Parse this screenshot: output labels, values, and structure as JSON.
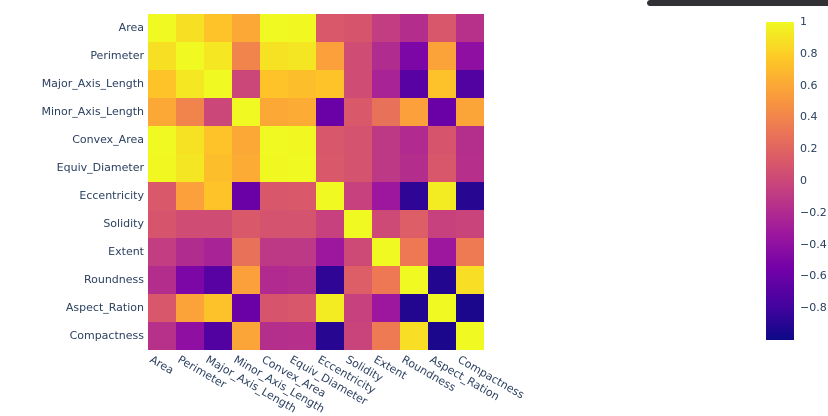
{
  "page": {
    "background": "#ffffff"
  },
  "top_bar": {
    "color": "#323236"
  },
  "chart_data": {
    "type": "heatmap",
    "title": "",
    "xlabel": "",
    "ylabel": "",
    "grid": false,
    "legend_position": "right-colorbar",
    "tick_font_color": "#2a3f5f",
    "categories": [
      "Area",
      "Perimeter",
      "Major_Axis_Length",
      "Minor_Axis_Length",
      "Convex_Area",
      "Equiv_Diameter",
      "Eccentricity",
      "Solidity",
      "Extent",
      "Roundness",
      "Aspect_Ration",
      "Compactness"
    ],
    "matrix": [
      [
        1.0,
        0.88,
        0.74,
        0.6,
        1.0,
        0.99,
        0.12,
        0.1,
        -0.07,
        -0.18,
        0.11,
        -0.15
      ],
      [
        0.88,
        1.0,
        0.92,
        0.4,
        0.89,
        0.91,
        0.56,
        0.04,
        -0.19,
        -0.5,
        0.57,
        -0.41
      ],
      [
        0.74,
        0.92,
        1.0,
        0.0,
        0.74,
        0.72,
        0.74,
        0.04,
        -0.25,
        -0.68,
        0.73,
        -0.72
      ],
      [
        0.6,
        0.4,
        0.0,
        1.0,
        0.6,
        0.62,
        -0.6,
        0.12,
        0.28,
        0.56,
        -0.6,
        0.58
      ],
      [
        1.0,
        0.89,
        0.74,
        0.6,
        1.0,
        0.99,
        0.11,
        0.08,
        -0.1,
        -0.2,
        0.1,
        -0.17
      ],
      [
        0.99,
        0.91,
        0.72,
        0.62,
        0.99,
        1.0,
        0.12,
        0.08,
        -0.1,
        -0.18,
        0.11,
        -0.16
      ],
      [
        0.12,
        0.56,
        0.74,
        -0.6,
        0.11,
        0.12,
        1.0,
        -0.04,
        -0.33,
        -0.87,
        0.94,
        -0.9
      ],
      [
        0.1,
        0.04,
        0.04,
        0.12,
        0.08,
        0.08,
        -0.04,
        1.0,
        0.02,
        0.16,
        -0.04,
        -0.02
      ],
      [
        -0.07,
        -0.19,
        -0.25,
        0.28,
        -0.1,
        -0.1,
        -0.33,
        0.02,
        1.0,
        0.33,
        -0.33,
        0.34
      ],
      [
        -0.18,
        -0.5,
        -0.68,
        0.56,
        -0.2,
        -0.18,
        -0.87,
        0.16,
        0.33,
        1.0,
        -0.92,
        0.87
      ],
      [
        0.11,
        0.57,
        0.73,
        -0.6,
        0.1,
        0.11,
        0.94,
        -0.04,
        -0.33,
        -0.92,
        1.0,
        -0.95
      ],
      [
        -0.15,
        -0.41,
        -0.72,
        0.58,
        -0.17,
        -0.16,
        -0.9,
        -0.02,
        0.34,
        0.87,
        -0.95,
        1.0
      ]
    ],
    "zmin": -1,
    "zmax": 1,
    "colorscale_name": "Plasma",
    "colorscale_stops": [
      "#0d0887",
      "#46039f",
      "#7201a8",
      "#9c179e",
      "#bd3786",
      "#d8576b",
      "#ed7953",
      "#fb9f3a",
      "#fdca26",
      "#f0f921"
    ],
    "colorbar_ticks": [
      1,
      0.8,
      0.6,
      0.4,
      0.2,
      0,
      -0.2,
      -0.4,
      -0.6,
      -0.8
    ],
    "colorbar_tick_labels": [
      "1",
      "0.8",
      "0.6",
      "0.4",
      "0.2",
      "0",
      "−0.2",
      "−0.4",
      "−0.6",
      "−0.8"
    ]
  }
}
